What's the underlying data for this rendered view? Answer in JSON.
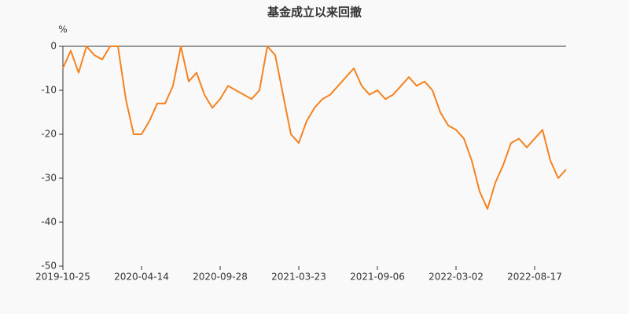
{
  "chart_data": {
    "type": "line",
    "title": "基金成立以来回撤",
    "y_label": "%",
    "categories": [
      "2019-10-25",
      null,
      null,
      null,
      null,
      null,
      null,
      null,
      null,
      null,
      "2020-04-14",
      null,
      null,
      null,
      null,
      null,
      null,
      null,
      null,
      null,
      "2020-09-28",
      null,
      null,
      null,
      null,
      null,
      null,
      null,
      null,
      null,
      "2021-03-23",
      null,
      null,
      null,
      null,
      null,
      null,
      null,
      null,
      null,
      "2021-09-06",
      null,
      null,
      null,
      null,
      null,
      null,
      null,
      null,
      null,
      "2022-03-02",
      null,
      null,
      null,
      null,
      null,
      null,
      null,
      null,
      null,
      "2022-08-17",
      null,
      null,
      null,
      null
    ],
    "series": [
      {
        "color": "#f5821f",
        "values": [
          -5,
          -1,
          -6,
          0,
          -2,
          -3,
          0,
          0,
          -12,
          -20,
          -20,
          -17,
          -13,
          -13,
          -9,
          0,
          -8,
          -6,
          -11,
          -14,
          -12,
          -9,
          -10,
          -11,
          -12,
          -10,
          0,
          -2,
          -11,
          -20,
          -22,
          -17,
          -14,
          -12,
          -11,
          -9,
          -7,
          -5,
          -9,
          -11,
          -10,
          -12,
          -11,
          -9,
          -7,
          -9,
          -8,
          -10,
          -15,
          -18,
          -19,
          -21,
          -26,
          -33,
          -37,
          -31,
          -27,
          -22,
          -21,
          -23,
          -21,
          -19,
          -26,
          -30,
          -28
        ]
      }
    ],
    "ylim": [
      -50,
      0
    ],
    "yticks": [
      0,
      -10,
      -20,
      -30,
      -40,
      -50
    ]
  }
}
